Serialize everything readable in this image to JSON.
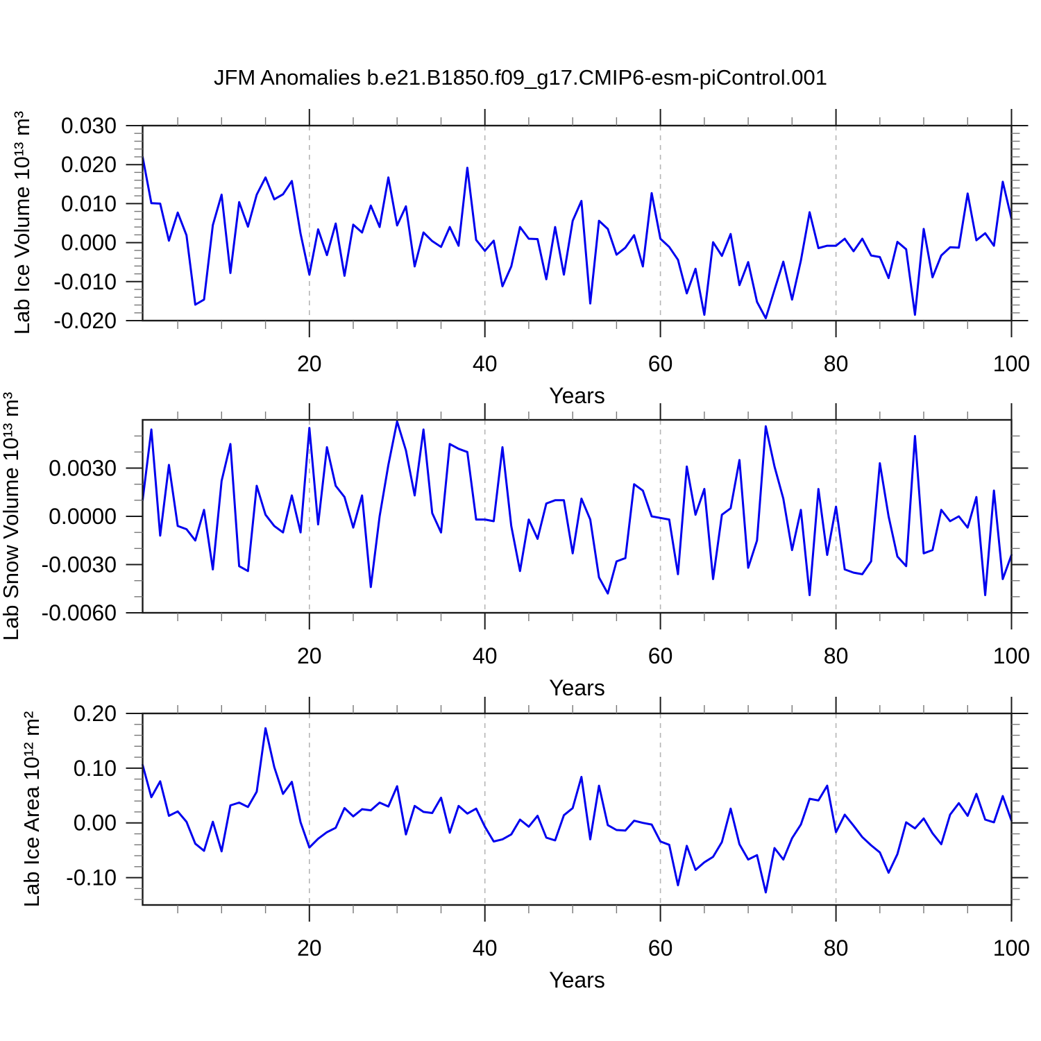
{
  "title": "JFM Anomalies b.e21.B1850.f09_g17.CMIP6-esm-piControl.001",
  "style": {
    "line_color": "#0000ee",
    "grid_color": "#b5b5b5",
    "axis_color": "#1a1a1a",
    "minor_tick_color": "#777777",
    "text_color": "#000000",
    "background": "#ffffff"
  },
  "chart_data": [
    {
      "type": "line",
      "ylabel": "Lab Ice Volume 10¹³ m³",
      "xlabel": "Years",
      "x_start": 1,
      "x_end": 100,
      "ylim": [
        -0.02,
        0.03
      ],
      "ytick_values": [
        0.03,
        0.02,
        0.01,
        0.0,
        -0.01,
        -0.02
      ],
      "ytick_labels": [
        "0.030",
        "0.020",
        "0.010",
        "0.000",
        "-0.010",
        "-0.020"
      ],
      "y_minor_step": 0.002,
      "xtick_values": [
        20,
        40,
        60,
        80,
        100
      ],
      "xtick_labels": [
        "20",
        "40",
        "60",
        "80",
        "100"
      ],
      "x_minor_step": 5,
      "gridlines_x": [
        20,
        40,
        60,
        80
      ],
      "grid_on": true,
      "legend": "none",
      "line_color": "#0000ee",
      "values": [
        0.022,
        0.0101,
        0.01,
        0.0005,
        0.0077,
        0.0019,
        -0.0159,
        -0.0146,
        0.0045,
        0.0123,
        -0.0078,
        0.0104,
        0.0041,
        0.0123,
        0.0167,
        0.0111,
        0.0124,
        0.0158,
        0.0023,
        -0.0082,
        0.0034,
        -0.0032,
        0.0049,
        -0.0085,
        0.0046,
        0.0026,
        0.0095,
        0.004,
        0.0167,
        0.0044,
        0.0093,
        -0.0061,
        0.0026,
        0.0004,
        -0.0011,
        0.004,
        -0.0008,
        0.0192,
        0.0007,
        -0.0021,
        0.0005,
        -0.0112,
        -0.0061,
        0.004,
        0.001,
        0.0009,
        -0.0094,
        0.004,
        -0.0082,
        0.0056,
        0.0107,
        -0.0156,
        0.0056,
        0.0035,
        -0.0031,
        -0.0013,
        0.0019,
        -0.0061,
        0.0127,
        0.001,
        -0.0011,
        -0.0044,
        -0.013,
        -0.0067,
        -0.0185,
        0.0001,
        -0.0034,
        0.0022,
        -0.0109,
        -0.005,
        -0.0152,
        -0.0194,
        -0.0121,
        -0.0049,
        -0.0146,
        -0.0046,
        0.0078,
        -0.0014,
        -0.0008,
        -0.0008,
        0.001,
        -0.0022,
        0.001,
        -0.0033,
        -0.0037,
        -0.0091,
        0.0002,
        -0.0017,
        -0.0185,
        0.0035,
        -0.0089,
        -0.0033,
        -0.0012,
        -0.0013,
        0.0126,
        0.0006,
        0.0024,
        -0.0008,
        0.0156,
        0.0061
      ]
    },
    {
      "type": "line",
      "ylabel": "Lab Snow Volume 10¹³ m³",
      "xlabel": "Years",
      "x_start": 1,
      "x_end": 100,
      "ylim": [
        -0.006,
        0.006
      ],
      "ytick_values": [
        0.003,
        0.0,
        -0.003,
        -0.006
      ],
      "ytick_labels": [
        "0.0030",
        "0.0000",
        "-0.0030",
        "-0.0060"
      ],
      "y_minor_step": 0.001,
      "xtick_values": [
        20,
        40,
        60,
        80,
        100
      ],
      "xtick_labels": [
        "20",
        "40",
        "60",
        "80",
        "100"
      ],
      "x_minor_step": 5,
      "gridlines_x": [
        20,
        40,
        60,
        80
      ],
      "grid_on": true,
      "legend": "none",
      "line_color": "#0000ee",
      "values": [
        0.001,
        0.0054,
        -0.0012,
        0.0032,
        -0.0006,
        -0.0008,
        -0.0015,
        0.0004,
        -0.0033,
        0.0022,
        0.0045,
        -0.0031,
        -0.0034,
        0.0019,
        0.0001,
        -0.0006,
        -0.001,
        0.0013,
        -0.001,
        0.0055,
        -0.0005,
        0.0043,
        0.0019,
        0.0012,
        -0.0007,
        0.0013,
        -0.0044,
        0.0,
        0.0032,
        0.0059,
        0.0041,
        0.0013,
        0.0054,
        0.0002,
        -0.001,
        0.0045,
        0.0042,
        0.004,
        -0.0002,
        -0.0002,
        -0.0003,
        0.0043,
        -0.0006,
        -0.0034,
        -0.0002,
        -0.0014,
        0.0008,
        0.001,
        0.001,
        -0.0023,
        0.0011,
        -0.0002,
        -0.0038,
        -0.0048,
        -0.0028,
        -0.0026,
        0.002,
        0.0016,
        0.0,
        -0.0001,
        -0.0002,
        -0.0036,
        0.0031,
        0.0001,
        0.0017,
        -0.0039,
        0.0001,
        0.0005,
        0.0035,
        -0.0032,
        -0.0015,
        0.0056,
        0.0031,
        0.0011,
        -0.0021,
        0.0004,
        -0.0049,
        0.0017,
        -0.0024,
        0.0006,
        -0.0033,
        -0.0035,
        -0.0036,
        -0.0028,
        0.0033,
        0.0,
        -0.0025,
        -0.0031,
        0.005,
        -0.0023,
        -0.0021,
        0.0004,
        -0.0003,
        0.0,
        -0.0007,
        0.0012,
        -0.0049,
        0.0016,
        -0.0039,
        -0.0024
      ]
    },
    {
      "type": "line",
      "ylabel": "Lab Ice Area 10¹² m²",
      "xlabel": "Years",
      "x_start": 1,
      "x_end": 100,
      "ylim": [
        -0.15,
        0.2
      ],
      "ytick_values": [
        0.2,
        0.1,
        0.0,
        -0.1
      ],
      "ytick_labels": [
        "0.20",
        "0.10",
        "0.00",
        "-0.10"
      ],
      "y_minor_step": 0.02,
      "xtick_values": [
        20,
        40,
        60,
        80,
        100
      ],
      "xtick_labels": [
        "20",
        "40",
        "60",
        "80",
        "100"
      ],
      "x_minor_step": 5,
      "gridlines_x": [
        20,
        40,
        60,
        80
      ],
      "grid_on": true,
      "legend": "none",
      "line_color": "#0000ee",
      "values": [
        0.106,
        0.047,
        0.076,
        0.013,
        0.021,
        0.002,
        -0.038,
        -0.051,
        0.002,
        -0.052,
        0.032,
        0.037,
        0.029,
        0.057,
        0.173,
        0.102,
        0.053,
        0.075,
        0.001,
        -0.045,
        -0.029,
        -0.017,
        -0.009,
        0.027,
        0.012,
        0.025,
        0.023,
        0.037,
        0.03,
        0.067,
        -0.021,
        0.031,
        0.02,
        0.018,
        0.046,
        -0.018,
        0.031,
        0.017,
        0.026,
        -0.007,
        -0.034,
        -0.03,
        -0.021,
        0.006,
        -0.007,
        0.013,
        -0.027,
        -0.032,
        0.014,
        0.027,
        0.084,
        -0.03,
        0.068,
        -0.004,
        -0.013,
        -0.014,
        0.004,
        0.0,
        -0.003,
        -0.034,
        -0.04,
        -0.114,
        -0.042,
        -0.086,
        -0.072,
        -0.062,
        -0.035,
        0.026,
        -0.039,
        -0.067,
        -0.059,
        -0.127,
        -0.046,
        -0.067,
        -0.028,
        -0.003,
        0.044,
        0.041,
        0.068,
        -0.017,
        0.015,
        -0.005,
        -0.026,
        -0.041,
        -0.054,
        -0.091,
        -0.057,
        0.001,
        -0.01,
        0.008,
        -0.019,
        -0.039,
        0.015,
        0.036,
        0.013,
        0.053,
        0.006,
        0.001,
        0.049,
        0.004
      ]
    }
  ]
}
